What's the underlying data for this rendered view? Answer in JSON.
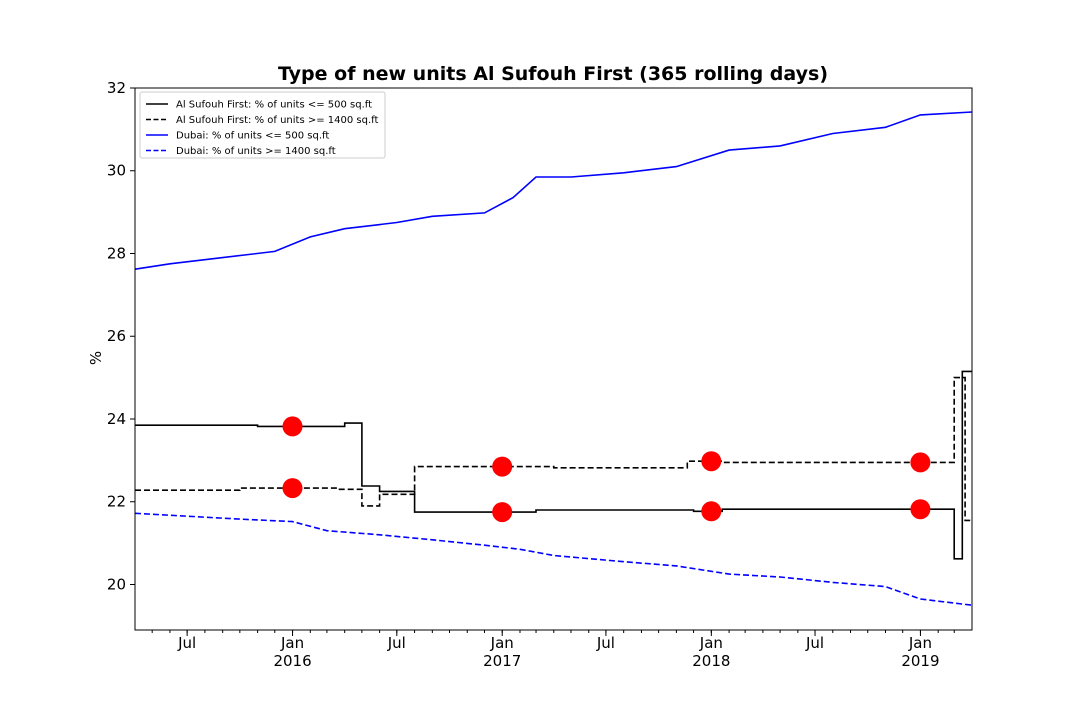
{
  "chart_data": {
    "type": "line",
    "title": "Type of new units Al Sufouh First (365 rolling days)",
    "ylabel": "%",
    "xlabel": "",
    "xlim": [
      "2015-04-01",
      "2019-04-01"
    ],
    "ylim": [
      18.9,
      32.0
    ],
    "yticks": [
      20,
      22,
      24,
      26,
      28,
      30,
      32
    ],
    "yticklabels": [
      "20",
      "22",
      "24",
      "26",
      "28",
      "30",
      "32"
    ],
    "xticks": [
      {
        "date": "2015-07-01",
        "label": "Jul",
        "year": ""
      },
      {
        "date": "2016-01-01",
        "label": "Jan",
        "year": "2016"
      },
      {
        "date": "2016-07-01",
        "label": "Jul",
        "year": ""
      },
      {
        "date": "2017-01-01",
        "label": "Jan",
        "year": "2017"
      },
      {
        "date": "2017-07-01",
        "label": "Jul",
        "year": ""
      },
      {
        "date": "2018-01-01",
        "label": "Jan",
        "year": "2018"
      },
      {
        "date": "2018-07-01",
        "label": "Jul",
        "year": ""
      },
      {
        "date": "2019-01-01",
        "label": "Jan",
        "year": "2019"
      }
    ],
    "grid": false,
    "legend_position": "top-left",
    "series": [
      {
        "name": "Al Sufouh First: % of units <= 500 sq.ft",
        "color": "#000000",
        "style": "solid",
        "step": true,
        "x": [
          "2015-04-01",
          "2015-11-01",
          "2016-04-01",
          "2016-05-01",
          "2016-06-01",
          "2016-08-01",
          "2017-03-01",
          "2017-12-01",
          "2018-01-20",
          "2019-01-01",
          "2019-03-01",
          "2019-03-15",
          "2019-04-01"
        ],
        "y": [
          23.85,
          23.82,
          23.9,
          22.38,
          22.25,
          21.75,
          21.8,
          21.77,
          21.82,
          21.82,
          20.62,
          25.15,
          25.15
        ]
      },
      {
        "name": "Al Sufouh First: % of units >= 1400 sq.ft",
        "color": "#000000",
        "style": "dashed",
        "step": true,
        "x": [
          "2015-04-01",
          "2015-10-01",
          "2016-03-20",
          "2016-05-01",
          "2016-06-01",
          "2016-08-01",
          "2017-04-01",
          "2017-11-20",
          "2018-01-20",
          "2019-03-01",
          "2019-03-20",
          "2019-04-01"
        ],
        "y": [
          22.28,
          22.33,
          22.3,
          21.9,
          22.18,
          22.85,
          22.82,
          22.98,
          22.95,
          25.0,
          21.55,
          21.55
        ]
      },
      {
        "name": "Dubai: % of units <= 500 sq.ft",
        "color": "#0000ff",
        "style": "solid",
        "step": false,
        "x": [
          "2015-04-01",
          "2015-06-01",
          "2015-09-01",
          "2015-12-01",
          "2016-02-01",
          "2016-04-01",
          "2016-07-01",
          "2016-09-01",
          "2016-12-01",
          "2017-01-20",
          "2017-03-01",
          "2017-05-01",
          "2017-08-01",
          "2017-11-01",
          "2018-02-01",
          "2018-05-01",
          "2018-08-01",
          "2018-11-01",
          "2019-01-01",
          "2019-04-01"
        ],
        "y": [
          27.62,
          27.75,
          27.9,
          28.05,
          28.4,
          28.6,
          28.75,
          28.9,
          28.98,
          29.35,
          29.85,
          29.85,
          29.95,
          30.1,
          30.5,
          30.6,
          30.9,
          31.05,
          31.35,
          31.42
        ]
      },
      {
        "name": "Dubai: % of units >= 1400 sq.ft",
        "color": "#0000ff",
        "style": "dashed",
        "step": false,
        "x": [
          "2015-04-01",
          "2015-07-01",
          "2015-10-01",
          "2016-01-01",
          "2016-03-01",
          "2016-06-01",
          "2016-09-01",
          "2016-12-01",
          "2017-02-01",
          "2017-04-01",
          "2017-08-01",
          "2017-11-01",
          "2018-02-01",
          "2018-05-01",
          "2018-08-01",
          "2018-11-01",
          "2019-01-01",
          "2019-04-01"
        ],
        "y": [
          21.72,
          21.65,
          21.58,
          21.52,
          21.3,
          21.2,
          21.08,
          20.95,
          20.85,
          20.7,
          20.55,
          20.45,
          20.25,
          20.18,
          20.05,
          19.95,
          19.65,
          19.5
        ]
      }
    ],
    "markers": {
      "color": "#ff0000",
      "points": [
        {
          "x": "2016-01-01",
          "y": 23.82
        },
        {
          "x": "2016-01-01",
          "y": 22.33
        },
        {
          "x": "2017-01-01",
          "y": 21.75
        },
        {
          "x": "2017-01-01",
          "y": 22.85
        },
        {
          "x": "2018-01-01",
          "y": 21.77
        },
        {
          "x": "2018-01-01",
          "y": 22.98
        },
        {
          "x": "2019-01-01",
          "y": 21.82
        },
        {
          "x": "2019-01-01",
          "y": 22.95
        }
      ]
    }
  }
}
